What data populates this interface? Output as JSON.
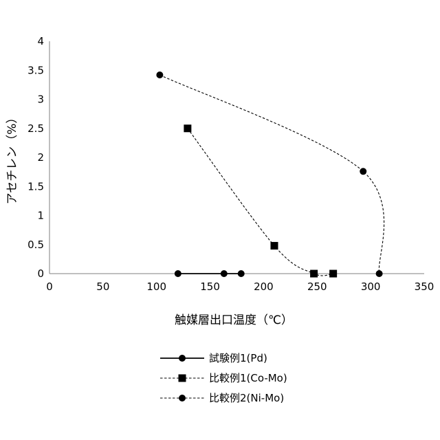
{
  "chart_data": {
    "type": "scatter",
    "xlabel": "触媒層出口温度（℃）",
    "ylabel": "アセチレン（%）",
    "xlim": [
      0,
      350
    ],
    "ylim": [
      0,
      4
    ],
    "xticks": [
      "0",
      "50",
      "100",
      "150",
      "200",
      "250",
      "300",
      "350"
    ],
    "yticks": [
      "0",
      "0.5",
      "1",
      "1.5",
      "2",
      "2.5",
      "3",
      "3.5",
      "4"
    ],
    "grid": false,
    "legend_position": "bottom-center",
    "series": [
      {
        "name": "試験例1(Pd)",
        "marker": "circle",
        "line": "solid",
        "x": [
          120,
          163,
          179
        ],
        "y": [
          0,
          0,
          0
        ]
      },
      {
        "name": "比較例1(Co-Mo)",
        "marker": "square",
        "line": "dashed",
        "x": [
          129,
          210,
          247,
          265
        ],
        "y": [
          2.5,
          0.48,
          0,
          0
        ]
      },
      {
        "name": "比較例2(Ni-Mo)",
        "marker": "circle",
        "line": "dashed",
        "x": [
          103,
          293,
          308
        ],
        "y": [
          3.42,
          1.76,
          0
        ]
      }
    ]
  }
}
